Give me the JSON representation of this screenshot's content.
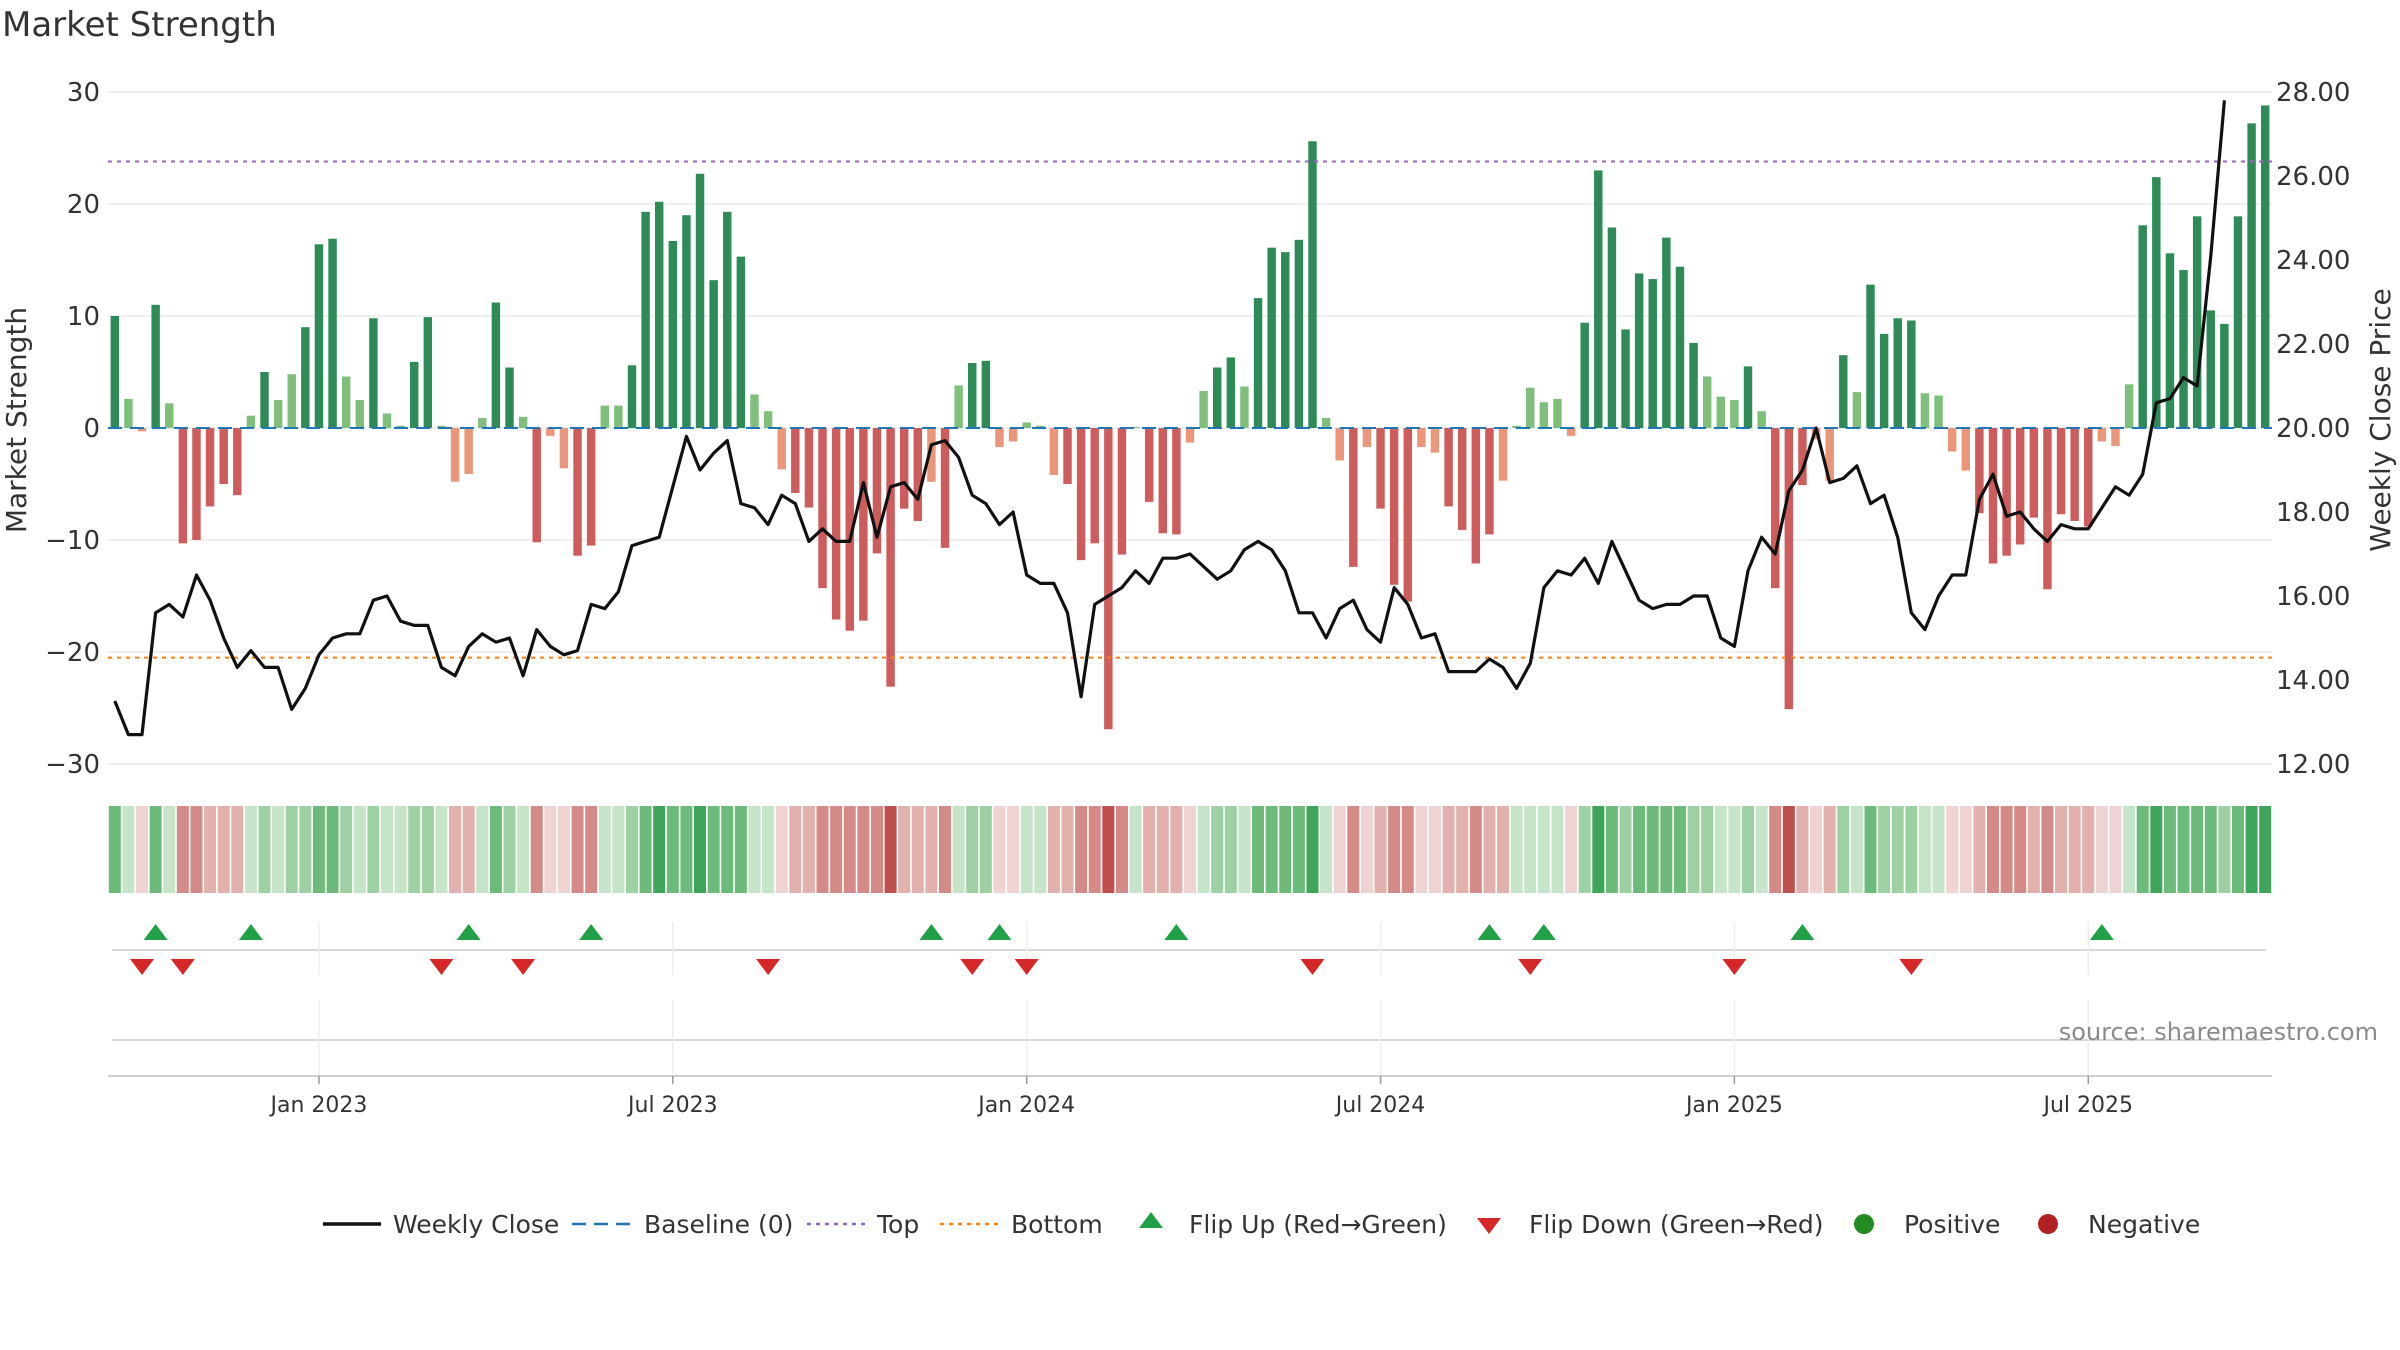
{
  "chart_data": {
    "type": "bar+line",
    "title": "Market Strength",
    "ylabel_left": "Market Strength",
    "ylabel_right": "Weekly Close Price",
    "ylim_left": [
      -30,
      30
    ],
    "ylim_right": [
      12,
      28
    ],
    "left_ticks": [
      "30",
      "20",
      "10",
      "0",
      "−10",
      "−20",
      "−30"
    ],
    "left_tick_values": [
      30,
      20,
      10,
      0,
      -10,
      -20,
      -30
    ],
    "right_ticks": [
      "28.00",
      "26.00",
      "24.00",
      "22.00",
      "20.00",
      "18.00",
      "16.00",
      "14.00",
      "12.00"
    ],
    "right_tick_values": [
      28,
      26,
      24,
      22,
      20,
      18,
      16,
      14,
      12
    ],
    "x_labels": [
      "Jan 2023",
      "Jul 2023",
      "Jan 2024",
      "Jul 2024",
      "Jan 2025",
      "Jul 2025"
    ],
    "x_label_weeks": [
      15,
      41,
      67,
      93,
      119,
      145
    ],
    "top_line": 23.8,
    "bottom_line": -20.5,
    "strength": [
      10,
      2.6,
      -0.3,
      11,
      2.2,
      -10.3,
      -10,
      -7,
      -5,
      -6,
      1.1,
      5,
      2.5,
      4.8,
      9,
      16.4,
      16.9,
      4.6,
      2.5,
      9.8,
      1.3,
      0.2,
      5.9,
      9.9,
      0.2,
      -4.8,
      -4.1,
      0.9,
      11.2,
      5.4,
      1,
      -10.2,
      -0.7,
      -3.6,
      -11.4,
      -10.5,
      2,
      2,
      5.6,
      19.3,
      20.2,
      16.7,
      19,
      22.7,
      13.2,
      19.3,
      15.3,
      3,
      1.5,
      -3.7,
      -5.8,
      -7.1,
      -14.3,
      -17.1,
      -18.1,
      -17.2,
      -11.2,
      -23.1,
      -7.2,
      -8.3,
      -4.8,
      -10.7,
      3.8,
      5.8,
      6,
      -1.7,
      -1.2,
      0.5,
      0.2,
      -4.2,
      -5,
      -11.8,
      -10.3,
      -26.9,
      -11.3,
      0.1,
      -6.6,
      -9.4,
      -9.5,
      -1.3,
      3.3,
      5.4,
      6.3,
      3.7,
      11.6,
      16.1,
      15.7,
      16.8,
      25.6,
      0.9,
      -2.9,
      -12.4,
      -1.7,
      -7.2,
      -14,
      -15.5,
      -1.7,
      -2.2,
      -7,
      -9.1,
      -12.1,
      -9.5,
      -4.7,
      0.2,
      3.6,
      2.3,
      2.6,
      -0.7,
      9.4,
      23,
      17.9,
      8.8,
      13.8,
      13.3,
      17,
      14.4,
      7.6,
      4.6,
      2.8,
      2.5,
      5.5,
      1.5,
      -14.3,
      -25.1,
      -5.1,
      -1,
      -4.7,
      6.5,
      3.2,
      12.8,
      8.4,
      9.8,
      9.6,
      3.1,
      2.9,
      -2.1,
      -3.8,
      -7.6,
      -12.1,
      -11.4,
      -10.4,
      -8,
      -14.4,
      -7.7,
      -8.3,
      -8.8,
      -1.2,
      -1.6,
      3.9,
      18.1,
      22.4,
      15.6,
      14.1,
      18.9,
      10.5,
      9.3,
      18.9,
      27.2,
      28.8
    ],
    "weekly_close": [
      13.5,
      12.7,
      12.7,
      15.6,
      15.8,
      15.5,
      16.5,
      15.9,
      15,
      14.3,
      14.7,
      14.3,
      14.3,
      13.3,
      13.8,
      14.6,
      15,
      15.1,
      15.1,
      15.9,
      16,
      15.4,
      15.3,
      15.3,
      14.3,
      14.1,
      14.8,
      15.1,
      14.9,
      15,
      14.1,
      15.2,
      14.8,
      14.6,
      14.7,
      15.8,
      15.7,
      16.1,
      17.2,
      17.3,
      17.4,
      18.6,
      19.8,
      19,
      19.4,
      19.7,
      18.2,
      18.1,
      17.7,
      18.4,
      18.2,
      17.3,
      17.6,
      17.3,
      17.3,
      18.7,
      17.4,
      18.6,
      18.7,
      18.3,
      19.6,
      19.7,
      19.3,
      18.4,
      18.2,
      17.7,
      18,
      16.5,
      16.3,
      16.3,
      15.6,
      13.6,
      15.8,
      16,
      16.2,
      16.6,
      16.3,
      16.9,
      16.9,
      17,
      16.7,
      16.4,
      16.6,
      17.1,
      17.3,
      17.1,
      16.6,
      15.6,
      15.6,
      15,
      15.7,
      15.9,
      15.2,
      14.9,
      16.2,
      15.8,
      15,
      15.1,
      14.2,
      14.2,
      14.2,
      14.5,
      14.3,
      13.8,
      14.4,
      16.2,
      16.6,
      16.5,
      16.9,
      16.3,
      17.3,
      16.6,
      15.9,
      15.7,
      15.8,
      15.8,
      16,
      16,
      15,
      14.8,
      16.6,
      17.4,
      17,
      18.5,
      19,
      20,
      18.7,
      18.8,
      19.1,
      18.2,
      18.4,
      17.4,
      15.6,
      15.2,
      16,
      16.5,
      16.5,
      18.3,
      18.9,
      17.9,
      18,
      17.6,
      17.3,
      17.7,
      17.6,
      17.6,
      18.1,
      18.6,
      18.4,
      18.9,
      20.6,
      20.7,
      21.2,
      21,
      24.1,
      27.8
    ],
    "flip_up_weeks": [
      3,
      10,
      26,
      35,
      60,
      65,
      78,
      101,
      105,
      124,
      146
    ],
    "flip_down_weeks": [
      2,
      5,
      24,
      30,
      48,
      63,
      67,
      88,
      104,
      119,
      132
    ],
    "source": "source: sharemaestro.com",
    "legend": [
      "Weekly Close",
      "Baseline (0)",
      "Top",
      "Bottom",
      "Flip Up (Red→Green)",
      "Flip Down (Green→Red)",
      "Positive",
      "Negative"
    ],
    "colors": {
      "strong_up": "#2e8b57",
      "weak_up": "#7fbf7b",
      "strong_down": "#cd5c5c",
      "weak_down": "#e9967a",
      "price": "#111111",
      "baseline": "#1f77b4",
      "top": "#9467bd",
      "bottom": "#ff7f0e",
      "flip_up": "#22a047",
      "flip_down": "#d62728",
      "positive": "#228b22",
      "negative": "#b22222"
    }
  }
}
